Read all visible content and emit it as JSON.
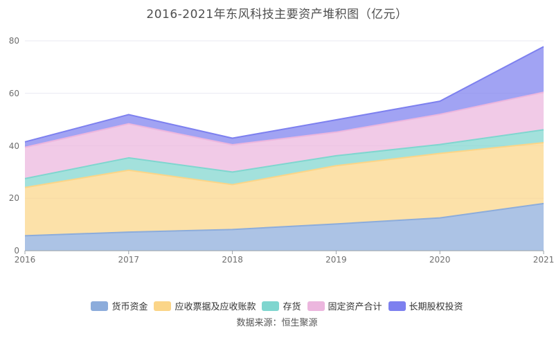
{
  "title": "2016-2021年东风科技主要资产堆积图（亿元）",
  "source": "数据来源：恒生聚源",
  "colors": {
    "background": "#ffffff",
    "grid": "#e9e9f2",
    "axis": "#9aa0a6",
    "tick_text": "#6e6e6e",
    "title_text": "#4e4e4e",
    "legend_text": "#333333",
    "source_text": "#555555"
  },
  "chart_data": {
    "type": "area",
    "stacked": true,
    "title": "2016-2021年东风科技主要资产堆积图（亿元）",
    "categories": [
      "2016",
      "2017",
      "2018",
      "2019",
      "2020",
      "2021"
    ],
    "series": [
      {
        "name": "货币资金",
        "color": "#8cacdb",
        "values": [
          5.7,
          7.1,
          8.1,
          10.2,
          12.5,
          18.0
        ]
      },
      {
        "name": "应收票据及应收账款",
        "color": "#fbd588",
        "values": [
          18.4,
          23.6,
          17.1,
          22.2,
          24.6,
          23.2
        ]
      },
      {
        "name": "存货",
        "color": "#7fd6cf",
        "values": [
          3.4,
          4.7,
          4.8,
          3.8,
          3.4,
          4.9
        ]
      },
      {
        "name": "固定资产合计",
        "color": "#ecb6de",
        "values": [
          11.9,
          13.0,
          10.4,
          9.0,
          11.5,
          14.3
        ]
      },
      {
        "name": "长期股权投资",
        "color": "#7d80ef",
        "values": [
          2.1,
          3.5,
          2.5,
          4.7,
          5.0,
          17.4
        ]
      }
    ],
    "stack_totals": [
      41.5,
      51.9,
      42.9,
      49.9,
      57.0,
      77.8
    ],
    "xlabel": "",
    "ylabel": "",
    "ylim": [
      0,
      80
    ],
    "yticks": [
      0,
      20,
      40,
      60,
      80
    ],
    "grid": true,
    "legend_position": "bottom",
    "fill_opacity": 0.72
  }
}
